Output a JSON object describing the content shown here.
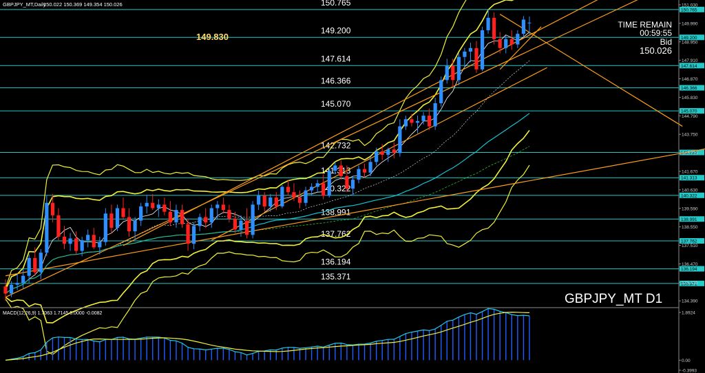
{
  "header": {
    "symbol_line": "GBPJPY_MT,Daily",
    "ohlc_line": "150.022 150.369 149.354 150.026"
  },
  "watermark": "GBPJPY_MT D1",
  "info_panel": {
    "time_remain_label": "TIME REMAIN",
    "time_remain_value": "00:59:55",
    "bid_label": "Bid",
    "bid_value": "150.026"
  },
  "highlight_price": "149.830",
  "indicator": {
    "name_line": "MACD(12,26,9) 1.7063 1.7145 0.0000 -0.0082",
    "scale_labels": [
      "1.8924",
      "0.00",
      "-0.3993"
    ],
    "scale_values": [
      1.8924,
      0.0,
      -0.3993
    ]
  },
  "colors": {
    "background": "#000000",
    "bull_candle": "#2f8fff",
    "bear_candle": "#ff2020",
    "level_line": "#24c9c9",
    "bollinger": "#f2f23a",
    "trendline": "#ff9f1a",
    "ma_slow": "#17c3d6",
    "ma_dashed": "#37b437",
    "macd_line": "#27c8e8",
    "signal_line": "#f2f23a",
    "histogram": "#1f5fff"
  },
  "chart_data": {
    "type": "candlestick",
    "ylim": [
      134.05,
      151.3
    ],
    "price_scale_labels": [
      "151.030",
      "149.990",
      "148.950",
      "147.910",
      "146.870",
      "145.830",
      "144.790",
      "143.750",
      "142.710",
      "141.670",
      "140.630",
      "139.590",
      "138.550",
      "137.510",
      "136.470",
      "135.430",
      "134.390"
    ],
    "price_scale_values": [
      151.03,
      149.99,
      148.95,
      147.91,
      146.87,
      145.83,
      144.79,
      143.75,
      142.71,
      141.67,
      140.63,
      139.59,
      138.55,
      137.51,
      136.47,
      135.43,
      134.39
    ],
    "levels": [
      {
        "label": "150.765",
        "value": 150.765
      },
      {
        "label": "149.200",
        "value": 149.2
      },
      {
        "label": "147.614",
        "value": 147.614
      },
      {
        "label": "146.366",
        "value": 146.366
      },
      {
        "label": "145.070",
        "value": 145.07
      },
      {
        "label": "142.732",
        "value": 142.732
      },
      {
        "label": "141.313",
        "value": 141.313
      },
      {
        "label": "140.322",
        "value": 140.322
      },
      {
        "label": "138.991",
        "value": 138.991
      },
      {
        "label": "137.762",
        "value": 137.762
      },
      {
        "label": "136.194",
        "value": 136.194
      },
      {
        "label": "135.371",
        "value": 135.371
      }
    ],
    "candles": [
      [
        135.2,
        135.6,
        134.4,
        134.8
      ],
      [
        134.8,
        135.5,
        134.6,
        135.3
      ],
      [
        135.3,
        135.9,
        135.0,
        135.4
      ],
      [
        135.4,
        136.2,
        135.1,
        135.8
      ],
      [
        135.8,
        137.0,
        135.4,
        136.8
      ],
      [
        136.8,
        137.4,
        135.8,
        136.0
      ],
      [
        136.0,
        137.3,
        135.6,
        137.1
      ],
      [
        137.1,
        140.3,
        136.9,
        139.9
      ],
      [
        139.9,
        140.4,
        138.8,
        139.2
      ],
      [
        139.2,
        139.6,
        137.8,
        138.0
      ],
      [
        138.0,
        138.6,
        137.3,
        137.6
      ],
      [
        137.6,
        138.2,
        137.2,
        137.9
      ],
      [
        137.9,
        138.3,
        137.0,
        137.2
      ],
      [
        137.2,
        138.0,
        136.9,
        137.8
      ],
      [
        137.8,
        138.4,
        137.4,
        138.1
      ],
      [
        138.1,
        138.5,
        137.3,
        137.4
      ],
      [
        137.4,
        138.0,
        137.0,
        137.7
      ],
      [
        137.7,
        139.6,
        137.5,
        139.3
      ],
      [
        139.3,
        139.8,
        138.2,
        138.5
      ],
      [
        138.5,
        139.8,
        138.3,
        139.6
      ],
      [
        139.6,
        140.2,
        139.0,
        139.1
      ],
      [
        139.1,
        139.6,
        138.0,
        138.3
      ],
      [
        138.3,
        139.1,
        137.8,
        138.9
      ],
      [
        138.9,
        139.9,
        138.6,
        139.7
      ],
      [
        139.7,
        140.3,
        139.3,
        139.9
      ],
      [
        139.9,
        140.4,
        139.5,
        139.6
      ],
      [
        139.6,
        140.1,
        139.1,
        139.8
      ],
      [
        139.8,
        140.2,
        139.2,
        139.4
      ],
      [
        139.4,
        140.0,
        138.6,
        138.8
      ],
      [
        138.8,
        139.8,
        138.5,
        139.5
      ],
      [
        139.5,
        139.8,
        138.5,
        138.7
      ],
      [
        138.7,
        139.0,
        137.2,
        137.6
      ],
      [
        137.6,
        138.8,
        137.3,
        138.6
      ],
      [
        138.6,
        139.3,
        138.3,
        139.1
      ],
      [
        139.1,
        139.6,
        138.5,
        138.8
      ],
      [
        138.8,
        139.8,
        138.5,
        139.6
      ],
      [
        139.6,
        140.0,
        139.0,
        139.8
      ],
      [
        139.8,
        140.2,
        139.3,
        139.5
      ],
      [
        139.5,
        139.8,
        138.8,
        139.0
      ],
      [
        139.0,
        139.4,
        138.2,
        138.4
      ],
      [
        138.4,
        139.2,
        138.0,
        138.9
      ],
      [
        138.9,
        139.6,
        137.9,
        138.1
      ],
      [
        138.1,
        140.0,
        137.9,
        139.8
      ],
      [
        139.8,
        140.6,
        139.5,
        140.3
      ],
      [
        140.3,
        140.5,
        139.4,
        139.7
      ],
      [
        139.7,
        140.4,
        139.4,
        140.2
      ],
      [
        140.2,
        140.5,
        139.5,
        139.7
      ],
      [
        139.7,
        140.9,
        139.6,
        140.8
      ],
      [
        140.8,
        141.2,
        140.3,
        140.5
      ],
      [
        140.5,
        141.0,
        140.0,
        140.2
      ],
      [
        140.2,
        140.6,
        139.6,
        139.9
      ],
      [
        139.9,
        140.8,
        139.7,
        140.6
      ],
      [
        140.6,
        141.0,
        140.3,
        140.8
      ],
      [
        140.8,
        141.2,
        140.5,
        141.0
      ],
      [
        141.0,
        141.5,
        140.1,
        140.3
      ],
      [
        140.3,
        141.9,
        140.2,
        141.7
      ],
      [
        141.7,
        142.2,
        141.5,
        142.0
      ],
      [
        142.0,
        142.3,
        141.2,
        141.4
      ],
      [
        141.4,
        142.0,
        140.5,
        140.7
      ],
      [
        140.7,
        141.4,
        140.3,
        141.2
      ],
      [
        141.2,
        142.0,
        141.0,
        141.8
      ],
      [
        141.8,
        142.1,
        141.3,
        141.6
      ],
      [
        141.6,
        142.5,
        141.4,
        142.2
      ],
      [
        142.2,
        143.0,
        142.0,
        142.8
      ],
      [
        142.8,
        143.2,
        142.3,
        142.6
      ],
      [
        142.6,
        143.0,
        142.2,
        142.9
      ],
      [
        142.9,
        143.3,
        142.4,
        142.7
      ],
      [
        142.7,
        144.6,
        142.5,
        144.2
      ],
      [
        144.2,
        144.8,
        144.0,
        144.6
      ],
      [
        144.6,
        144.9,
        144.2,
        144.4
      ],
      [
        144.4,
        144.8,
        143.8,
        144.5
      ],
      [
        144.5,
        145.0,
        144.3,
        144.8
      ],
      [
        144.8,
        145.2,
        144.0,
        144.2
      ],
      [
        144.2,
        145.8,
        144.0,
        145.5
      ],
      [
        145.5,
        147.0,
        145.3,
        146.8
      ],
      [
        146.8,
        148.0,
        146.6,
        147.6
      ],
      [
        147.6,
        148.0,
        146.4,
        146.8
      ],
      [
        146.8,
        148.3,
        146.5,
        148.1
      ],
      [
        148.1,
        148.6,
        147.5,
        148.4
      ],
      [
        148.4,
        148.9,
        147.8,
        148.6
      ],
      [
        148.6,
        149.0,
        147.2,
        147.4
      ],
      [
        147.4,
        149.8,
        147.3,
        149.6
      ],
      [
        149.6,
        150.8,
        149.4,
        150.3
      ],
      [
        150.3,
        150.6,
        148.8,
        149.1
      ],
      [
        149.1,
        149.5,
        148.3,
        148.6
      ],
      [
        148.6,
        149.3,
        148.3,
        149.1
      ],
      [
        149.1,
        149.6,
        148.5,
        148.8
      ],
      [
        148.8,
        149.6,
        148.6,
        149.4
      ],
      [
        149.4,
        150.4,
        149.2,
        150.2
      ],
      [
        150.022,
        150.369,
        149.354,
        150.026
      ]
    ]
  }
}
